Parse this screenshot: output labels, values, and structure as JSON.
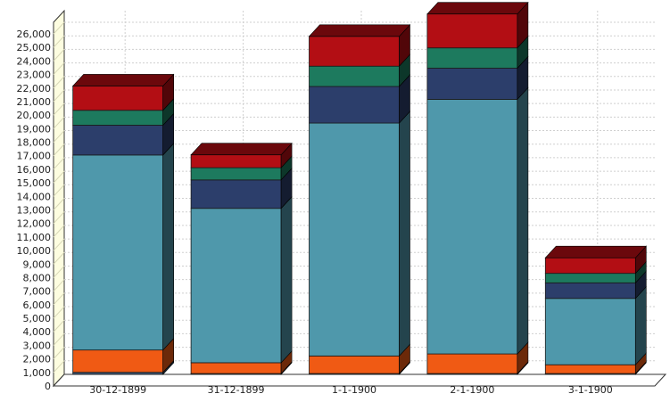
{
  "chart_data": {
    "type": "bar",
    "stacked": true,
    "three_d": true,
    "title": "",
    "xlabel": "",
    "ylabel": "",
    "ylim": [
      0,
      26000
    ],
    "ytick_step": 1000,
    "yticks": [
      "0",
      "1,000",
      "2,000",
      "3,000",
      "4,000",
      "5,000",
      "6,000",
      "7,000",
      "8,000",
      "9,000",
      "10,000",
      "11,000",
      "12,000",
      "13,000",
      "14,000",
      "15,000",
      "16,000",
      "17,000",
      "18,000",
      "19,000",
      "20,000",
      "21,000",
      "22,000",
      "23,000",
      "24,000",
      "25,000",
      "26,000"
    ],
    "grid": true,
    "legend": "none",
    "categories": [
      "30-12-1899",
      "31-12-1899",
      "1-1-1900",
      "2-1-1900",
      "3-1-1900"
    ],
    "series": [
      {
        "color": "#3d5a7a",
        "values": [
          150,
          60,
          60,
          60,
          60
        ]
      },
      {
        "color": "#f05a14",
        "values": [
          1650,
          800,
          1300,
          1450,
          650
        ]
      },
      {
        "color": "#4f98ab",
        "values": [
          14400,
          11400,
          17200,
          18800,
          4900
        ]
      },
      {
        "color": "#2c3e6b",
        "values": [
          2200,
          2100,
          2700,
          2300,
          1150
        ]
      },
      {
        "color": "#1d7a5e",
        "values": [
          1100,
          900,
          1500,
          1500,
          700
        ]
      },
      {
        "color": "#b30e14",
        "values": [
          1800,
          950,
          2200,
          2500,
          1150
        ]
      }
    ]
  }
}
